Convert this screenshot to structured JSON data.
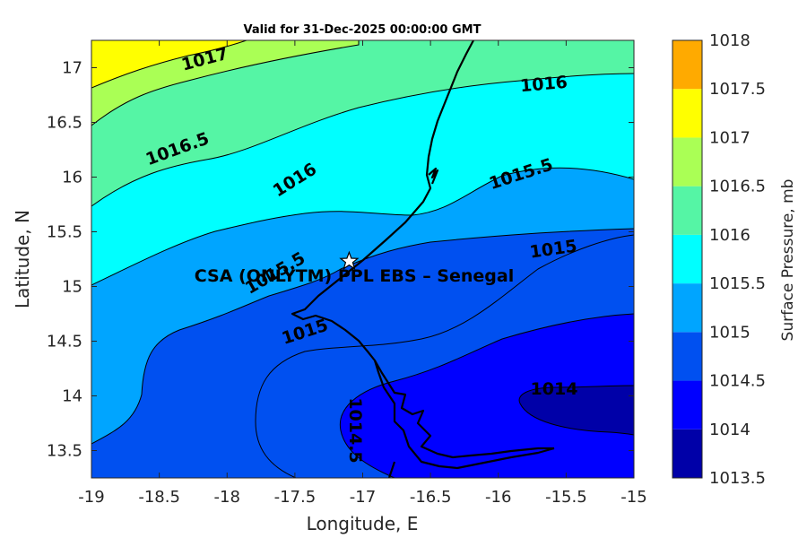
{
  "title": "Valid for 31-Dec-2025 00:00:00 GMT",
  "xlabel": "Longitude, E",
  "ylabel": "Latitude, N",
  "colorbar": {
    "label": "Surface Pressure, mb",
    "levels": [
      "1013.5",
      "1014",
      "1014.5",
      "1015",
      "1015.5",
      "1016",
      "1016.5",
      "1017",
      "1017.5",
      "1018"
    ],
    "colors": [
      "#0000a8",
      "#0000ff",
      "#0050f0",
      "#00a5ff",
      "#00ffff",
      "#55f5a5",
      "#aaff55",
      "#ffff00",
      "#ffaa00",
      "#ff5500"
    ]
  },
  "x_ticks": [
    "-19",
    "-18.5",
    "-18",
    "-17.5",
    "-17",
    "-16.5",
    "-16",
    "-15.5",
    "-15"
  ],
  "y_ticks": [
    "13.5",
    "14",
    "14.5",
    "15",
    "15.5",
    "16",
    "16.5",
    "17"
  ],
  "contour_labels": [
    "1017",
    "1016",
    "1016.5",
    "1016",
    "1015.5",
    "1015",
    "1015.5",
    "1015",
    "1014",
    "1014.5"
  ],
  "site": {
    "label": "CSA (ONLYTM) PPL EBS  – Senegal",
    "lon": -17.1,
    "lat": 15.23
  },
  "chart_data": {
    "type": "heatmap",
    "title": "Valid for 31-Dec-2025 00:00:00 GMT",
    "xlabel": "Longitude, E",
    "ylabel": "Latitude, N",
    "xlim": [
      -19,
      -15
    ],
    "ylim": [
      13.25,
      17.25
    ],
    "colorbar_label": "Surface Pressure, mb",
    "colorbar_range": [
      1013.5,
      1018
    ],
    "contour_levels": [
      1014,
      1014.5,
      1015,
      1015.5,
      1016,
      1016.5,
      1017
    ],
    "contour_label_values": [
      1017,
      1016,
      1016.5,
      1016,
      1015.5,
      1015,
      1015.5,
      1015,
      1014,
      1014.5
    ],
    "site_marker": {
      "lon": -17.1,
      "lat": 15.23,
      "symbol": "star"
    }
  }
}
